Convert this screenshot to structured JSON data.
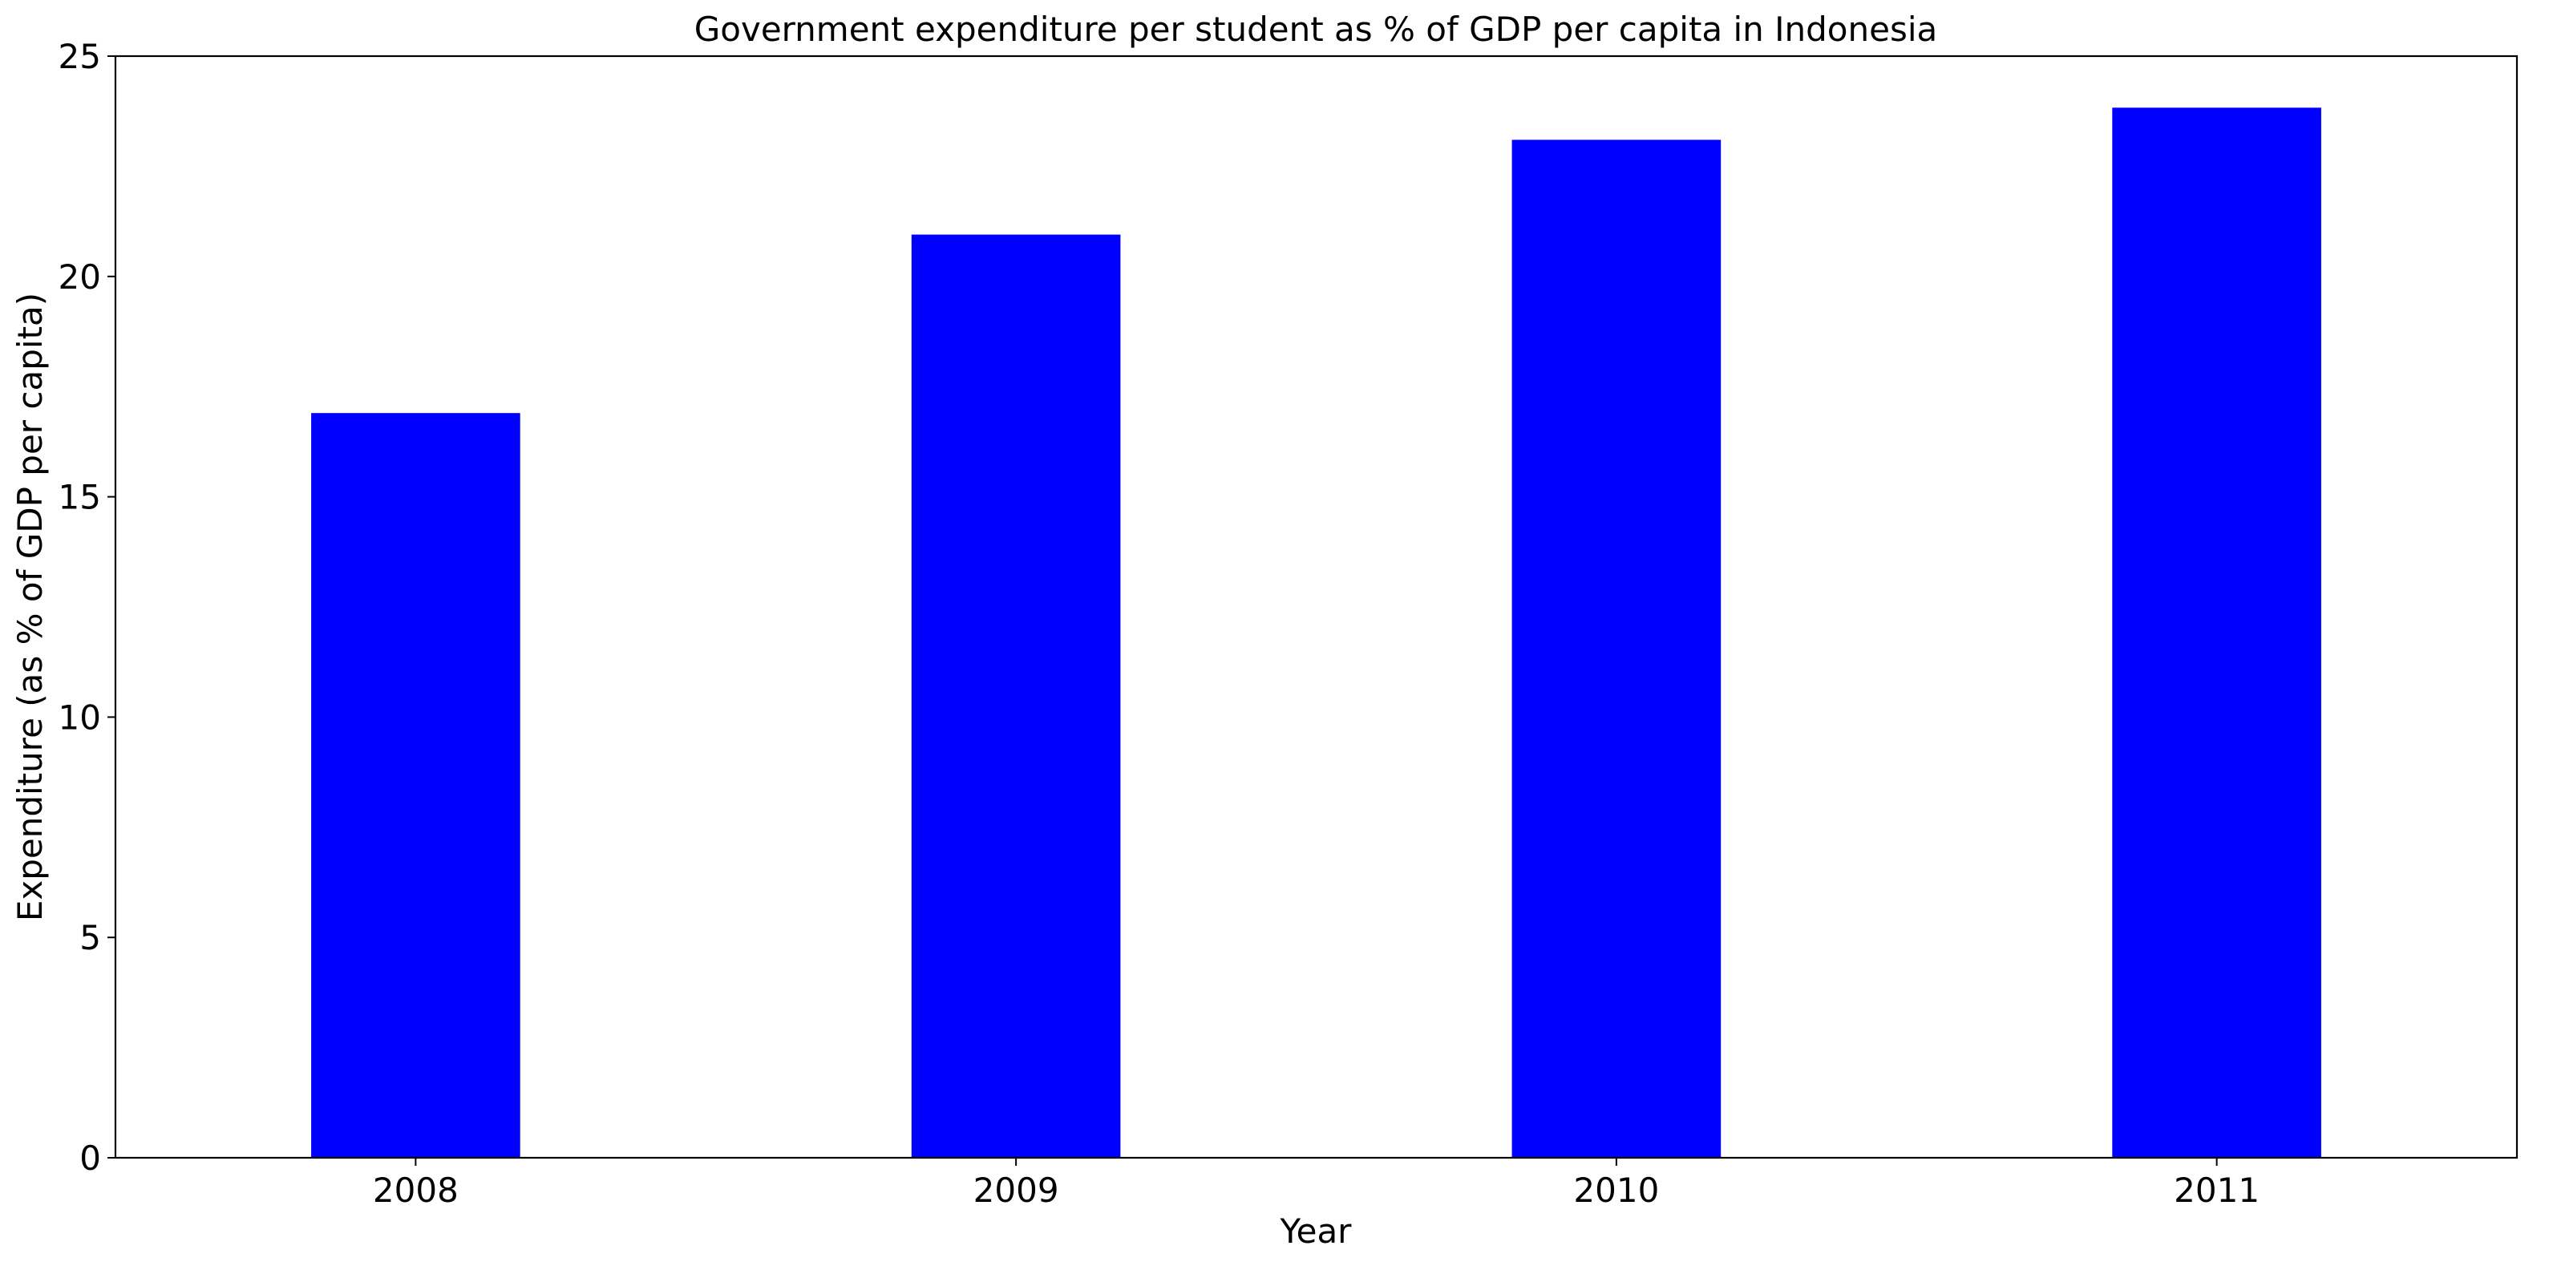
{
  "chart_data": {
    "type": "bar",
    "title": "Government expenditure per student as % of GDP per capita in Indonesia",
    "xlabel": "Year",
    "ylabel": "Expenditure (as % of GDP per capita)",
    "categories": [
      "2008",
      "2009",
      "2010",
      "2011"
    ],
    "values": [
      16.9,
      20.95,
      23.1,
      23.83
    ],
    "ylim": [
      0,
      25
    ],
    "yticks": [
      0,
      5,
      10,
      15,
      20,
      25
    ],
    "ytick_labels": [
      "0",
      "5",
      "10",
      "15",
      "20",
      "25"
    ],
    "grid": false,
    "legend": "none",
    "bar_color": "#0000ff"
  }
}
